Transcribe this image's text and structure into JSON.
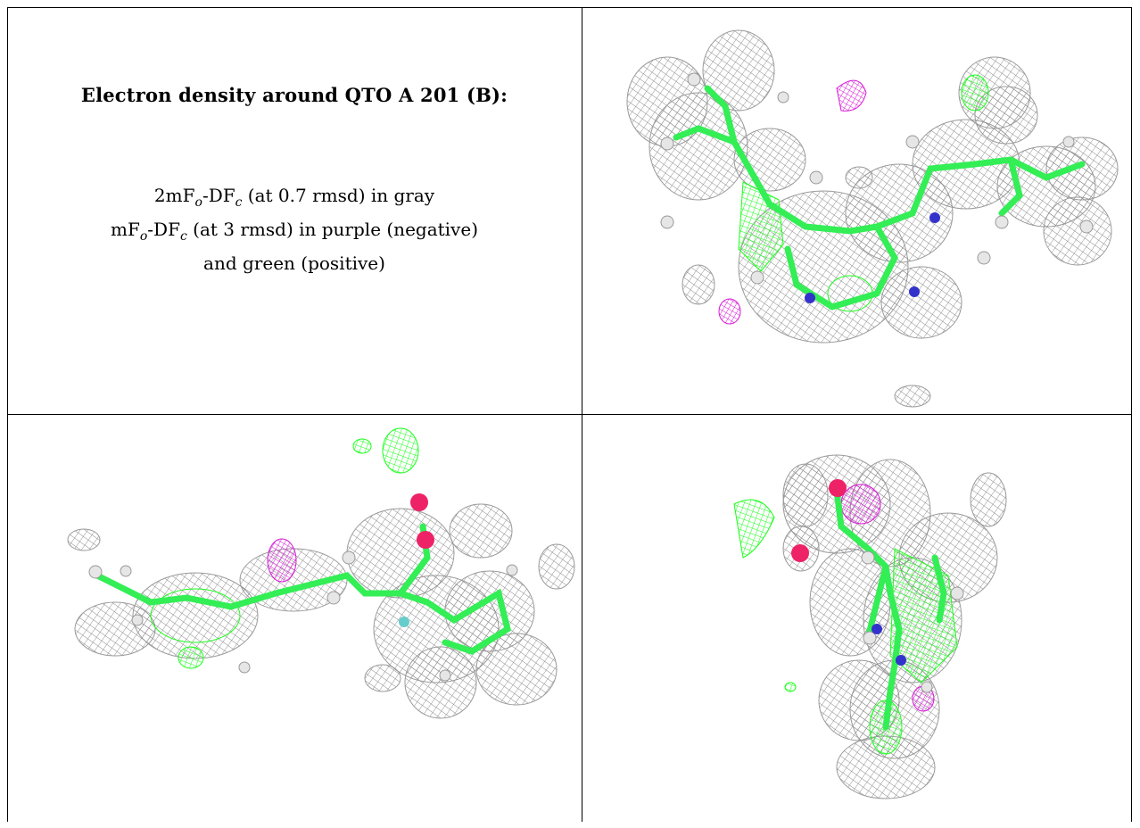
{
  "caption": {
    "title": "Electron density around QTO A 201 (B):",
    "lines": [
      {
        "pre": "2mF",
        "sub1": "o",
        "mid": "-DF",
        "sub2": "c",
        "post": " (at 0.7 rmsd) in gray"
      },
      {
        "pre": "mF",
        "sub1": "o",
        "mid": "-DF",
        "sub2": "c",
        "post": " (at 3 rmsd) in purple (negative)"
      },
      {
        "text": "and green (positive)"
      }
    ]
  },
  "colors": {
    "mesh_gray": "#8a8a8a",
    "mesh_green": "#1aff1a",
    "mesh_purple": "#d61ad6",
    "carbon": "#33ee55",
    "hydrogen": "#e6e6e6",
    "oxygen": "#ee2266",
    "nitrogen": "#3333cc",
    "fluorine": "#66cccc"
  },
  "panels": [
    {
      "view": "view-1"
    },
    {
      "view": "view-2"
    },
    {
      "view": "view-3"
    }
  ]
}
